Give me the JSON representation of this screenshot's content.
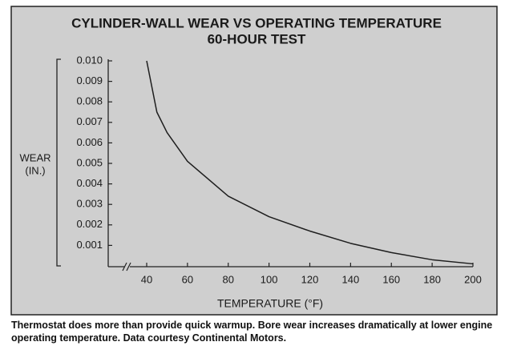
{
  "chart_data": {
    "type": "line",
    "title": "CYLINDER-WALL WEAR VS OPERATING TEMPERATURE",
    "subtitle": "60-HOUR TEST",
    "y_label": [
      "WEAR",
      "(IN.)"
    ],
    "x_label": "TEMPERATURE (°F)",
    "caption": "Thermostat does more than provide quick warmup. Bore wear increases dramatically at lower engine operating temperature. Data courtesy Continental Motors.",
    "x": [
      40,
      45,
      50,
      60,
      80,
      100,
      120,
      140,
      160,
      180,
      200
    ],
    "series": [
      {
        "name": "Wear",
        "color": "#1e1e1e",
        "values": [
          0.01,
          0.0075,
          0.0065,
          0.0051,
          0.0034,
          0.0024,
          0.0017,
          0.0011,
          0.00065,
          0.0003,
          0.0001
        ]
      }
    ],
    "xlim": [
      40,
      200
    ],
    "xticks": [
      40,
      60,
      80,
      100,
      120,
      140,
      160,
      180,
      200
    ],
    "ylim": [
      0,
      0.01
    ],
    "yticks": [
      {
        "value": 0.01,
        "label": "0.010"
      },
      0.009,
      0.008,
      0.007,
      0.006,
      0.005,
      0.004,
      0.003,
      0.002,
      0.001
    ]
  }
}
